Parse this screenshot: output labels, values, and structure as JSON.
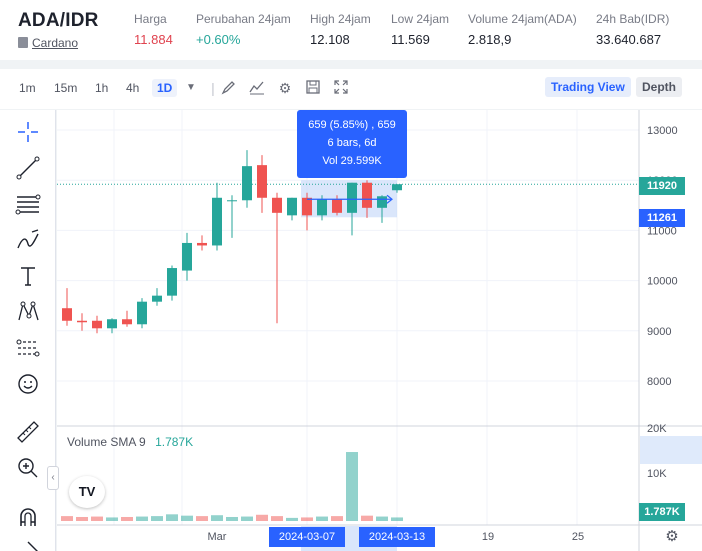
{
  "header": {
    "pair": "ADA/IDR",
    "coin_name": "Cardano",
    "stats": [
      {
        "label": "Harga",
        "value": "11.884",
        "tone": "red"
      },
      {
        "label": "Perubahan 24jam",
        "value": "+0.60%",
        "tone": "green"
      },
      {
        "label": "High 24jam",
        "value": "12.108",
        "tone": "default"
      },
      {
        "label": "Low 24jam",
        "value": "11.569",
        "tone": "default"
      },
      {
        "label": "Volume 24jam(ADA)",
        "value": "2.818,9",
        "tone": "default"
      },
      {
        "label": "24h Bab(IDR)",
        "value": "33.640.687",
        "tone": "default"
      }
    ]
  },
  "toolbar": {
    "timeframes": [
      "1m",
      "15m",
      "1h",
      "4h",
      "1D"
    ],
    "active_timeframe": "1D",
    "icons": [
      "chevron-down-icon",
      "brush-icon",
      "indicator-icon",
      "gear-icon",
      "save-icon",
      "fullscreen-icon"
    ],
    "views": [
      "Trading View",
      "Depth"
    ],
    "active_view": "Trading View"
  },
  "sidebar": {
    "tools": [
      "crosshair-icon",
      "trendline-icon",
      "fib-icon",
      "brush-draw-icon",
      "text-icon",
      "pattern-icon",
      "prediction-icon",
      "emoji-icon",
      "ruler-icon",
      "zoom-in-icon",
      "magnet-icon",
      "lock-icon"
    ]
  },
  "measure_tooltip": {
    "line1": "659 (5.85%) , 659",
    "line2": "6 bars, 6d",
    "line3": "Vol 29.599K"
  },
  "volume_legend": {
    "label": "Volume SMA 9",
    "value": "1.787K"
  },
  "price_tags": {
    "current": "11920",
    "measure_start": "11261",
    "volume": "1.787K"
  },
  "date_tags": [
    "2024-03-07",
    "2024-03-13"
  ],
  "colors": {
    "up": "#26a69a",
    "down": "#ef5350",
    "accent": "#2962ff"
  },
  "chart_data": {
    "type": "candlestick",
    "price_axis_ticks": [
      13000,
      12000,
      11000,
      10000,
      9000,
      8000
    ],
    "volume_axis_ticks": [
      "20K",
      "10K"
    ],
    "x_tick_labels": [
      "Mar",
      "19",
      "25"
    ],
    "ylim": [
      7500,
      13300
    ],
    "candles": [
      {
        "o": 9450,
        "h": 9850,
        "l": 9100,
        "c": 9200
      },
      {
        "o": 9200,
        "h": 9350,
        "l": 9000,
        "c": 9170
      },
      {
        "o": 9200,
        "h": 9300,
        "l": 8950,
        "c": 9050
      },
      {
        "o": 9050,
        "h": 9250,
        "l": 8950,
        "c": 9230
      },
      {
        "o": 9230,
        "h": 9400,
        "l": 9080,
        "c": 9130
      },
      {
        "o": 9130,
        "h": 9650,
        "l": 9050,
        "c": 9580
      },
      {
        "o": 9580,
        "h": 9850,
        "l": 9500,
        "c": 9700
      },
      {
        "o": 9700,
        "h": 10300,
        "l": 9600,
        "c": 10250
      },
      {
        "o": 10200,
        "h": 10950,
        "l": 10000,
        "c": 10750
      },
      {
        "o": 10750,
        "h": 10900,
        "l": 10600,
        "c": 10700
      },
      {
        "o": 10700,
        "h": 11950,
        "l": 10600,
        "c": 11650
      },
      {
        "o": 11600,
        "h": 11700,
        "l": 10850,
        "c": 11600
      },
      {
        "o": 11600,
        "h": 12600,
        "l": 11450,
        "c": 12280
      },
      {
        "o": 12300,
        "h": 12500,
        "l": 11350,
        "c": 11650
      },
      {
        "o": 11650,
        "h": 11750,
        "l": 9150,
        "c": 11350
      },
      {
        "o": 11300,
        "h": 11650,
        "l": 11200,
        "c": 11650
      },
      {
        "o": 11650,
        "h": 11750,
        "l": 11000,
        "c": 11300
      },
      {
        "o": 11300,
        "h": 11700,
        "l": 11200,
        "c": 11620
      },
      {
        "o": 11620,
        "h": 11700,
        "l": 11300,
        "c": 11350
      },
      {
        "o": 11350,
        "h": 11950,
        "l": 10900,
        "c": 11950
      },
      {
        "o": 11950,
        "h": 12000,
        "l": 11250,
        "c": 11450
      },
      {
        "o": 11450,
        "h": 11700,
        "l": 11150,
        "c": 11680
      },
      {
        "o": 11800,
        "h": 11920,
        "l": 11750,
        "c": 11920
      }
    ],
    "volumes": [
      1100,
      900,
      1000,
      800,
      900,
      1000,
      1100,
      1500,
      1200,
      1100,
      1300,
      900,
      1000,
      1400,
      1100,
      700,
      800,
      1000,
      1100,
      15500,
      1200,
      1000,
      800
    ]
  }
}
